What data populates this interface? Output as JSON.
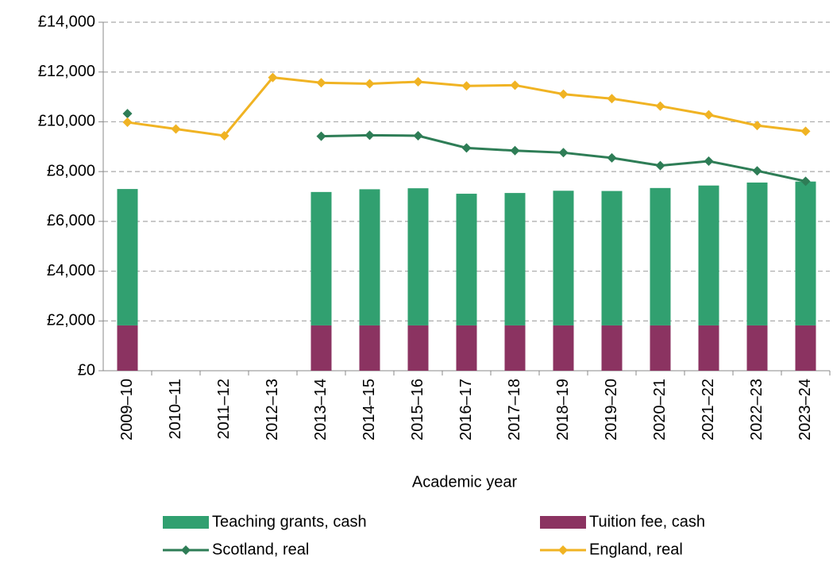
{
  "chart_data": {
    "type": "bar",
    "x_label": "Academic year",
    "categories": [
      "2009–10",
      "2010–11",
      "2011–12",
      "2012–13",
      "2013–14",
      "2014–15",
      "2015–16",
      "2016–17",
      "2017–18",
      "2018–19",
      "2019–20",
      "2020–21",
      "2021–22",
      "2022–23",
      "2023–24"
    ],
    "series": [
      {
        "name": "Teaching grants, cash",
        "kind": "bar",
        "color": "#31a070",
        "values": [
          5480,
          null,
          null,
          null,
          5360,
          5470,
          5510,
          5290,
          5320,
          5410,
          5400,
          5520,
          5620,
          5740,
          5780
        ]
      },
      {
        "name": "Tuition fee, cash",
        "kind": "bar",
        "color": "#8b3361",
        "values": [
          1820,
          null,
          null,
          null,
          1820,
          1820,
          1820,
          1820,
          1820,
          1820,
          1820,
          1820,
          1820,
          1820,
          1820
        ]
      },
      {
        "name": "Scotland, real",
        "kind": "line",
        "color": "#2e7d56",
        "values": [
          10330,
          null,
          null,
          null,
          9420,
          9460,
          9440,
          8950,
          8840,
          8760,
          8550,
          8240,
          8420,
          8030,
          7610
        ]
      },
      {
        "name": "England, real",
        "kind": "line",
        "color": "#f0b323",
        "values": [
          9980,
          9710,
          9440,
          11780,
          11570,
          11530,
          11610,
          11440,
          11470,
          11110,
          10930,
          10630,
          10280,
          9850,
          9620
        ]
      }
    ],
    "ylim": [
      0,
      14000
    ],
    "yticks": [
      {
        "value": 0,
        "label": "£0"
      },
      {
        "value": 2000,
        "label": "£2,000"
      },
      {
        "value": 4000,
        "label": "£4,000"
      },
      {
        "value": 6000,
        "label": "£6,000"
      },
      {
        "value": 8000,
        "label": "£8,000"
      },
      {
        "value": 10000,
        "label": "£10,000"
      },
      {
        "value": 12000,
        "label": "£12,000"
      },
      {
        "value": 14000,
        "label": "£14,000"
      }
    ],
    "grid": true
  }
}
